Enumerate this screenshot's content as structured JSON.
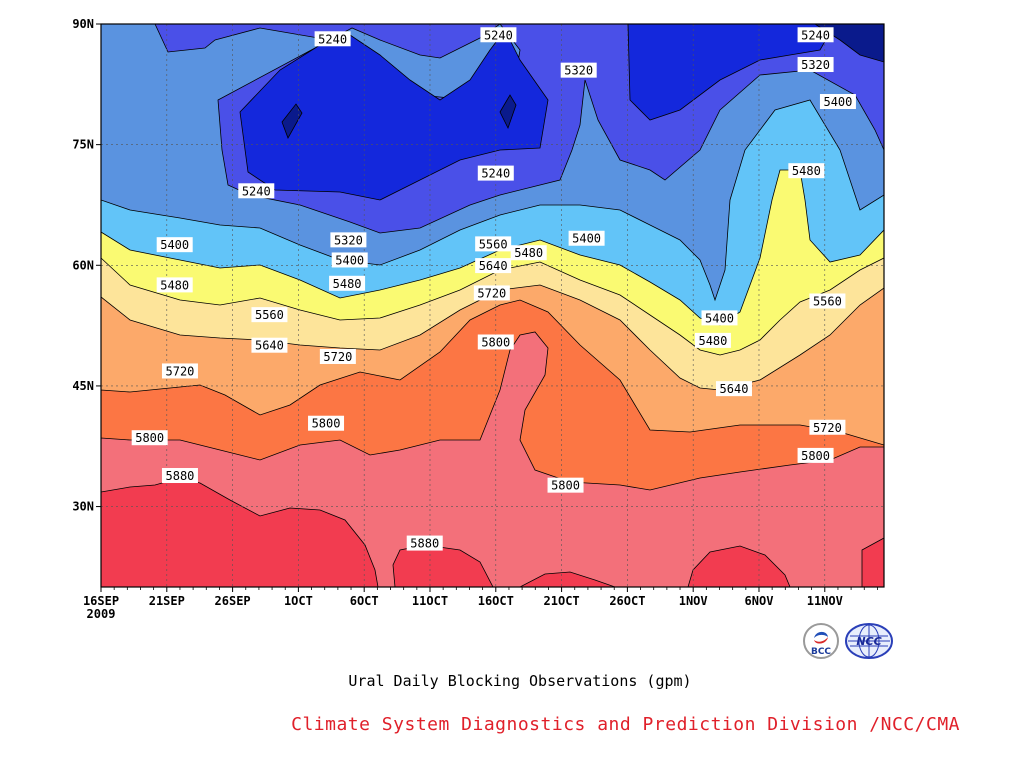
{
  "chart_data": {
    "type": "contour",
    "title": "Ural Daily Blocking Observations (gpm)",
    "credit": "Climate System Diagnostics and Prediction Division /NCC/CMA",
    "x_ticks": [
      "16SEP",
      "21SEP",
      "26SEP",
      "1OCT",
      "6OCT",
      "11OCT",
      "16OCT",
      "21OCT",
      "26OCT",
      "1NOV",
      "6NOV",
      "11NOV"
    ],
    "x_year": "2009",
    "y_ticks": [
      "90N",
      "75N",
      "60N",
      "45N",
      "30N"
    ],
    "y_tick_values": [
      90,
      75,
      60,
      45,
      30
    ],
    "ylim": [
      20,
      90
    ],
    "grid": true,
    "contour_levels": [
      5240,
      5320,
      5400,
      5480,
      5560,
      5640,
      5720,
      5800,
      5880
    ],
    "fill_colors": [
      "#0a1a8c",
      "#1428dc",
      "#4a50e8",
      "#5a93e0",
      "#62c4f8",
      "#fafa72",
      "#fde49a",
      "#fca96a",
      "#fc7644",
      "#f3707a",
      "#f23c50"
    ],
    "contour_labels": [
      {
        "text": "5240",
        "lat": 88.1,
        "day": 17.6
      },
      {
        "text": "5240",
        "lat": 88.6,
        "day": 30.2
      },
      {
        "text": "5320",
        "lat": 84.2,
        "day": 36.3
      },
      {
        "text": "5240",
        "lat": 88.6,
        "day": 54.3
      },
      {
        "text": "5320",
        "lat": 84.9,
        "day": 54.3
      },
      {
        "text": "5400",
        "lat": 80.3,
        "day": 56.0
      },
      {
        "text": "5480",
        "lat": 71.7,
        "day": 53.6
      },
      {
        "text": "5240",
        "lat": 71.4,
        "day": 30.0
      },
      {
        "text": "5240",
        "lat": 69.2,
        "day": 11.8
      },
      {
        "text": "5400",
        "lat": 63.3,
        "day": 36.9
      },
      {
        "text": "5480",
        "lat": 61.5,
        "day": 32.5
      },
      {
        "text": "5560",
        "lat": 62.6,
        "day": 29.8
      },
      {
        "text": "5320",
        "lat": 63.1,
        "day": 18.8
      },
      {
        "text": "5400",
        "lat": 60.6,
        "day": 18.9
      },
      {
        "text": "5400",
        "lat": 62.5,
        "day": 5.6
      },
      {
        "text": "5640",
        "lat": 59.9,
        "day": 29.8
      },
      {
        "text": "5480",
        "lat": 57.7,
        "day": 18.7
      },
      {
        "text": "5480",
        "lat": 57.5,
        "day": 5.6
      },
      {
        "text": "5720",
        "lat": 56.5,
        "day": 29.7
      },
      {
        "text": "5560",
        "lat": 53.8,
        "day": 12.8
      },
      {
        "text": "5400",
        "lat": 53.4,
        "day": 47.0
      },
      {
        "text": "5560",
        "lat": 55.5,
        "day": 55.2
      },
      {
        "text": "5480",
        "lat": 50.6,
        "day": 46.5
      },
      {
        "text": "5800",
        "lat": 50.4,
        "day": 30.0
      },
      {
        "text": "5640",
        "lat": 50.0,
        "day": 12.8
      },
      {
        "text": "5720",
        "lat": 48.6,
        "day": 18.0
      },
      {
        "text": "5720",
        "lat": 46.8,
        "day": 6.0
      },
      {
        "text": "5640",
        "lat": 44.6,
        "day": 48.1
      },
      {
        "text": "5800",
        "lat": 40.3,
        "day": 17.1
      },
      {
        "text": "5720",
        "lat": 39.8,
        "day": 55.2
      },
      {
        "text": "5800",
        "lat": 38.5,
        "day": 3.7
      },
      {
        "text": "5800",
        "lat": 36.3,
        "day": 54.3
      },
      {
        "text": "5880",
        "lat": 33.8,
        "day": 6.0
      },
      {
        "text": "5800",
        "lat": 32.6,
        "day": 35.3
      },
      {
        "text": "5880",
        "lat": 25.4,
        "day": 24.6
      }
    ]
  },
  "logos": {
    "bcc_text": "BCC",
    "ncc_text": "NCC"
  }
}
